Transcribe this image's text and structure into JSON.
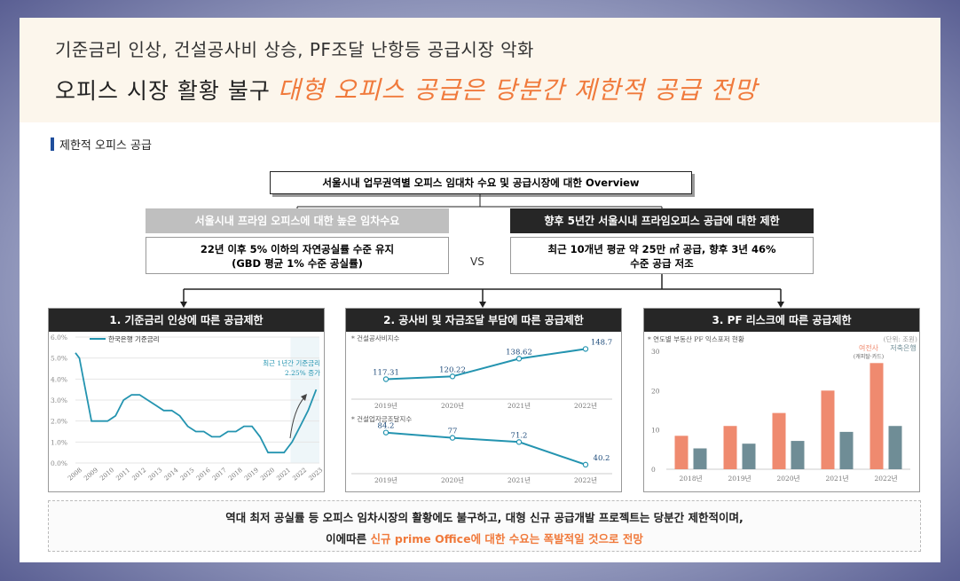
{
  "header": {
    "line1": "기준금리 인상, 건설공사비 상승, PF조달 난항등 공급시장 악화",
    "line2_plain": "오피스 시장 활황 불구",
    "line2_accent": "대형 오피스 공급은 당분간 제한적 공급 전망"
  },
  "section_title": "제한적 오피스 공급",
  "overview_title": "서울시내 업무권역별 오피스 임대차 수요 및 공급시장에 대한 Overview",
  "left_head": "서울시내 프라임 오피스에 대한 높은 임차수요",
  "left_body_1": "22년 이후 5% 이하의 자연공실률 수준 유지",
  "left_body_2": "(GBD 평균 1% 수준 공실률)",
  "vs": "VS",
  "right_head": "향후 5년간 서울시내 프라임오피스 공급에 대한 제한",
  "right_body_1": "최근 10개년 평균 약 25만 ㎡ 공급, 향후 3년 46%",
  "right_body_2": "수준 공급 저조",
  "panels": {
    "p1_title": "1. 기준금리 인상에 따른 공급제한",
    "p2_title": "2. 공사비 및 자금조달 부담에 따른 공급제한",
    "p3_title": "3. PF 리스크에 따른 공급제한"
  },
  "conclusion": {
    "line1": "역대 최저 공실률 등 오피스 임차시장의 활황에도 불구하고, 대형 신규 공급개발 프로젝트는 당분간 제한적이며,",
    "line2_plain": "이에따른",
    "line2_accent": "신규 prime Office에 대한 수요는 폭발적일 것으로 전망"
  },
  "colors": {
    "accent": "#f07a3c",
    "teal": "#2494b0",
    "salmon": "#ef8a6f",
    "slate": "#6f8d96",
    "dark": "#262626"
  },
  "chart_data": [
    {
      "type": "line",
      "legend": "한국은행 기준금리",
      "annotation_1": "최근 1년간 기준금리",
      "annotation_2": "2.25% 증가",
      "yticks": [
        "6.0%",
        "5.0%",
        "4.0%",
        "3.0%",
        "2.0%",
        "1.0%",
        "0.0%"
      ],
      "ylim": [
        0,
        6
      ],
      "xticks": [
        "2008",
        "2009",
        "2010",
        "2011",
        "2012",
        "2013",
        "2014",
        "2015",
        "2016",
        "2017",
        "2018",
        "2019",
        "2020",
        "2021",
        "2022",
        "2023"
      ],
      "x": [
        2008.0,
        2008.25,
        2008.5,
        2009.0,
        2009.5,
        2010.0,
        2010.5,
        2011.0,
        2011.5,
        2012.0,
        2012.5,
        2013.0,
        2013.5,
        2014.0,
        2014.5,
        2015.0,
        2015.5,
        2016.0,
        2016.5,
        2017.0,
        2017.5,
        2018.0,
        2018.5,
        2019.0,
        2019.5,
        2020.0,
        2020.5,
        2021.0,
        2021.5,
        2022.0,
        2022.5,
        2023.0
      ],
      "values": [
        5.25,
        5.0,
        4.0,
        2.0,
        2.0,
        2.0,
        2.25,
        3.0,
        3.25,
        3.25,
        3.0,
        2.75,
        2.5,
        2.5,
        2.25,
        1.75,
        1.5,
        1.5,
        1.25,
        1.25,
        1.5,
        1.5,
        1.75,
        1.75,
        1.25,
        0.5,
        0.5,
        0.5,
        1.0,
        1.75,
        2.5,
        3.5
      ]
    },
    {
      "type": "line",
      "title": "* 건설공사비지수",
      "categories": [
        "2019년",
        "2020년",
        "2021년",
        "2022년"
      ],
      "values": [
        117.31,
        120.22,
        138.62,
        148.7
      ],
      "labels": [
        "117.31",
        "120.22",
        "138.62",
        "148.7"
      ]
    },
    {
      "type": "line",
      "title": "* 건설업자금조달지수",
      "categories": [
        "2019년",
        "2020년",
        "2021년",
        "2022년"
      ],
      "values": [
        84.2,
        77,
        71.2,
        40.2
      ],
      "labels": [
        "84.2",
        "77",
        "71.2",
        "40.2"
      ]
    },
    {
      "type": "bar",
      "title": "* 연도별 부동산 PF 익스포저 현황",
      "unit": "(단위: 조원)",
      "categories": [
        "2018년",
        "2019년",
        "2020년",
        "2021년",
        "2022년"
      ],
      "yticks": [
        "30",
        "20",
        "10",
        "0"
      ],
      "ylim": [
        0,
        30
      ],
      "series": [
        {
          "name": "여전사",
          "sub": "(캐피탈·카드)",
          "values": [
            8.5,
            11.0,
            14.3,
            20.0,
            27.0
          ]
        },
        {
          "name": "저축은행",
          "values": [
            5.3,
            6.5,
            7.2,
            9.5,
            11.0
          ]
        }
      ]
    }
  ]
}
